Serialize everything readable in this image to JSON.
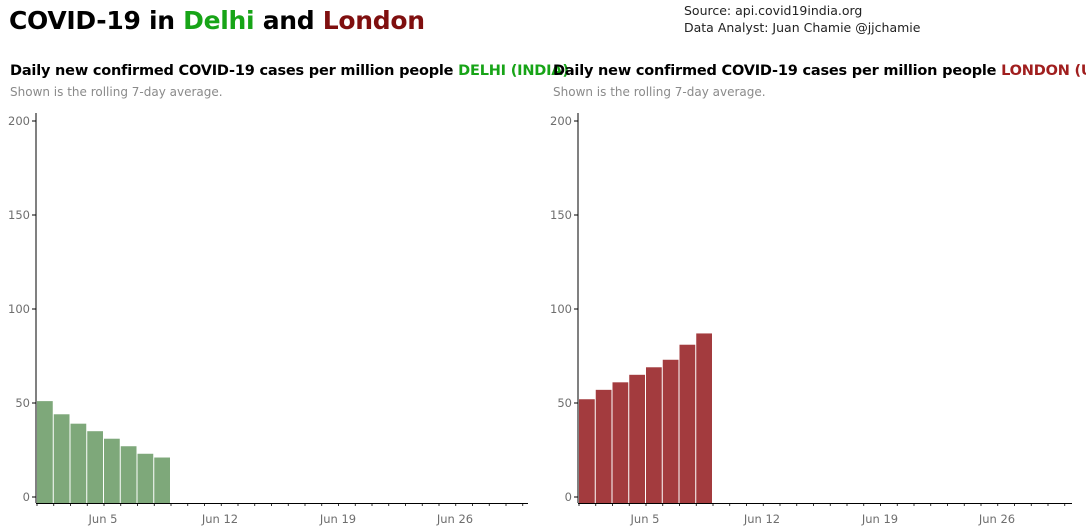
{
  "header": {
    "title_prefix": "COVID-19 in ",
    "title_city1": "Delhi",
    "title_and": " and ",
    "title_city2": "London",
    "source_line": "Source: api.covid19india.org",
    "analyst_line": "Data Analyst:  Juan Chamie @jjchamie"
  },
  "colors": {
    "delhi_title": "#17a417",
    "london_title": "#7f0f0f",
    "delhi_bars": "#7ea87a",
    "london_bars": "#a33b3e"
  },
  "chart_data": [
    {
      "type": "bar",
      "title_prefix": "Daily new confirmed COVID-19 cases per million people ",
      "title_place": "DELHI (INDIA)",
      "subtitle": "Shown is the rolling 7-day average.",
      "x": [
        "Jun 1",
        "Jun 2",
        "Jun 3",
        "Jun 4",
        "Jun 5",
        "Jun 6",
        "Jun 7",
        "Jun 8"
      ],
      "values": [
        51,
        44,
        39,
        35,
        31,
        27,
        23,
        21
      ],
      "ylim": [
        0,
        200
      ],
      "yticks": [
        0,
        50,
        100,
        150,
        200
      ],
      "xticks": [
        "Jun 5",
        "Jun 12",
        "Jun 19",
        "Jun 26"
      ],
      "grid": false
    },
    {
      "type": "bar",
      "title_prefix": "Daily new confirmed COVID-19 cases per million people ",
      "title_place": "LONDON (UK)",
      "subtitle": "Shown is the rolling 7-day average.",
      "x": [
        "Jun 1",
        "Jun 2",
        "Jun 3",
        "Jun 4",
        "Jun 5",
        "Jun 6",
        "Jun 7",
        "Jun 8"
      ],
      "values": [
        52,
        57,
        61,
        65,
        69,
        73,
        81,
        87
      ],
      "ylim": [
        0,
        200
      ],
      "yticks": [
        0,
        50,
        100,
        150,
        200
      ],
      "xticks": [
        "Jun 5",
        "Jun 12",
        "Jun 19",
        "Jun 26"
      ],
      "grid": false
    }
  ]
}
